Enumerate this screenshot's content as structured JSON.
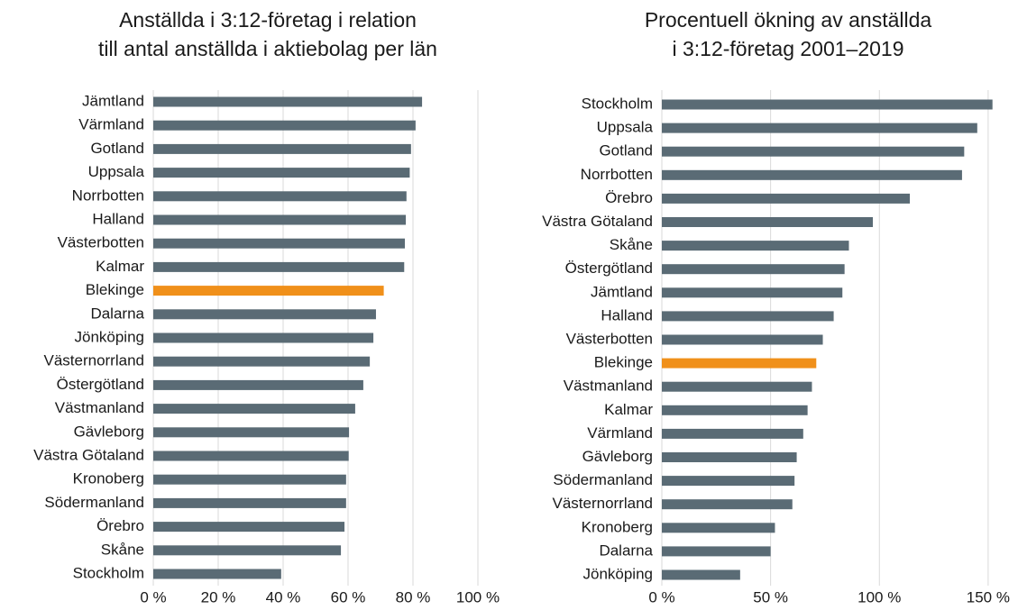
{
  "chart_data": [
    {
      "type": "barh",
      "title": [
        "Anställda i 3:12-företag i relation",
        "till antal anställda i aktiebolag per län"
      ],
      "categories": [
        "Jämtland",
        "Värmland",
        "Gotland",
        "Uppsala",
        "Norrbotten",
        "Halland",
        "Västerbotten",
        "Kalmar",
        "Blekinge",
        "Dalarna",
        "Jönköping",
        "Västernorrland",
        "Östergötland",
        "Västmanland",
        "Gävleborg",
        "Västra Götaland",
        "Kronoberg",
        "Södermanland",
        "Örebro",
        "Skåne",
        "Stockholm"
      ],
      "values": [
        82.8,
        80.8,
        79.4,
        79,
        78,
        77.8,
        77.5,
        77.3,
        71,
        68.6,
        67.8,
        66.7,
        64.7,
        62.2,
        60.3,
        60.2,
        59.4,
        59.4,
        58.9,
        57.8,
        39.4
      ],
      "colors": [
        "#5a6b75",
        "#5a6b75",
        "#5a6b75",
        "#5a6b75",
        "#5a6b75",
        "#5a6b75",
        "#5a6b75",
        "#5a6b75",
        "#f0901a",
        "#5a6b75",
        "#5a6b75",
        "#5a6b75",
        "#5a6b75",
        "#5a6b75",
        "#5a6b75",
        "#5a6b75",
        "#5a6b75",
        "#5a6b75",
        "#5a6b75",
        "#5a6b75",
        "#5a6b75"
      ],
      "xlim": [
        0,
        100
      ],
      "xticks": [
        {
          "value": 0,
          "label": "0 %"
        },
        {
          "value": 20,
          "label": "20 %"
        },
        {
          "value": 40,
          "label": "40 %"
        },
        {
          "value": 60,
          "label": "60 %"
        },
        {
          "value": 80,
          "label": "80 %"
        },
        {
          "value": 100,
          "label": "100 %"
        }
      ],
      "grid": true
    },
    {
      "type": "barh",
      "title": [
        "Procentuell ökning av anställda",
        "i 3:12-företag 2001–2019"
      ],
      "categories": [
        "Stockholm",
        "Uppsala",
        "Gotland",
        "Norrbotten",
        "Örebro",
        "Västra Götaland",
        "Skåne",
        "Östergötland",
        "Jämtland",
        "Halland",
        "Västerbotten",
        "Blekinge",
        "Västmanland",
        "Kalmar",
        "Värmland",
        "Gävleborg",
        "Södermanland",
        "Västernorrland",
        "Kronoberg",
        "Dalarna",
        "Jönköping"
      ],
      "values": [
        152,
        145,
        139,
        138,
        114,
        97,
        86,
        84,
        83,
        79,
        74,
        71,
        69,
        67,
        65,
        62,
        61,
        60,
        52,
        50,
        36
      ],
      "colors": [
        "#5a6b75",
        "#5a6b75",
        "#5a6b75",
        "#5a6b75",
        "#5a6b75",
        "#5a6b75",
        "#5a6b75",
        "#5a6b75",
        "#5a6b75",
        "#5a6b75",
        "#5a6b75",
        "#f0901a",
        "#5a6b75",
        "#5a6b75",
        "#5a6b75",
        "#5a6b75",
        "#5a6b75",
        "#5a6b75",
        "#5a6b75",
        "#5a6b75",
        "#5a6b75"
      ],
      "xlim": [
        0,
        160
      ],
      "xticks": [
        {
          "value": 0,
          "label": "0 %"
        },
        {
          "value": 50,
          "label": "50 %"
        },
        {
          "value": 100,
          "label": "100 %"
        },
        {
          "value": 150,
          "label": "150 %"
        }
      ],
      "grid": true
    }
  ]
}
